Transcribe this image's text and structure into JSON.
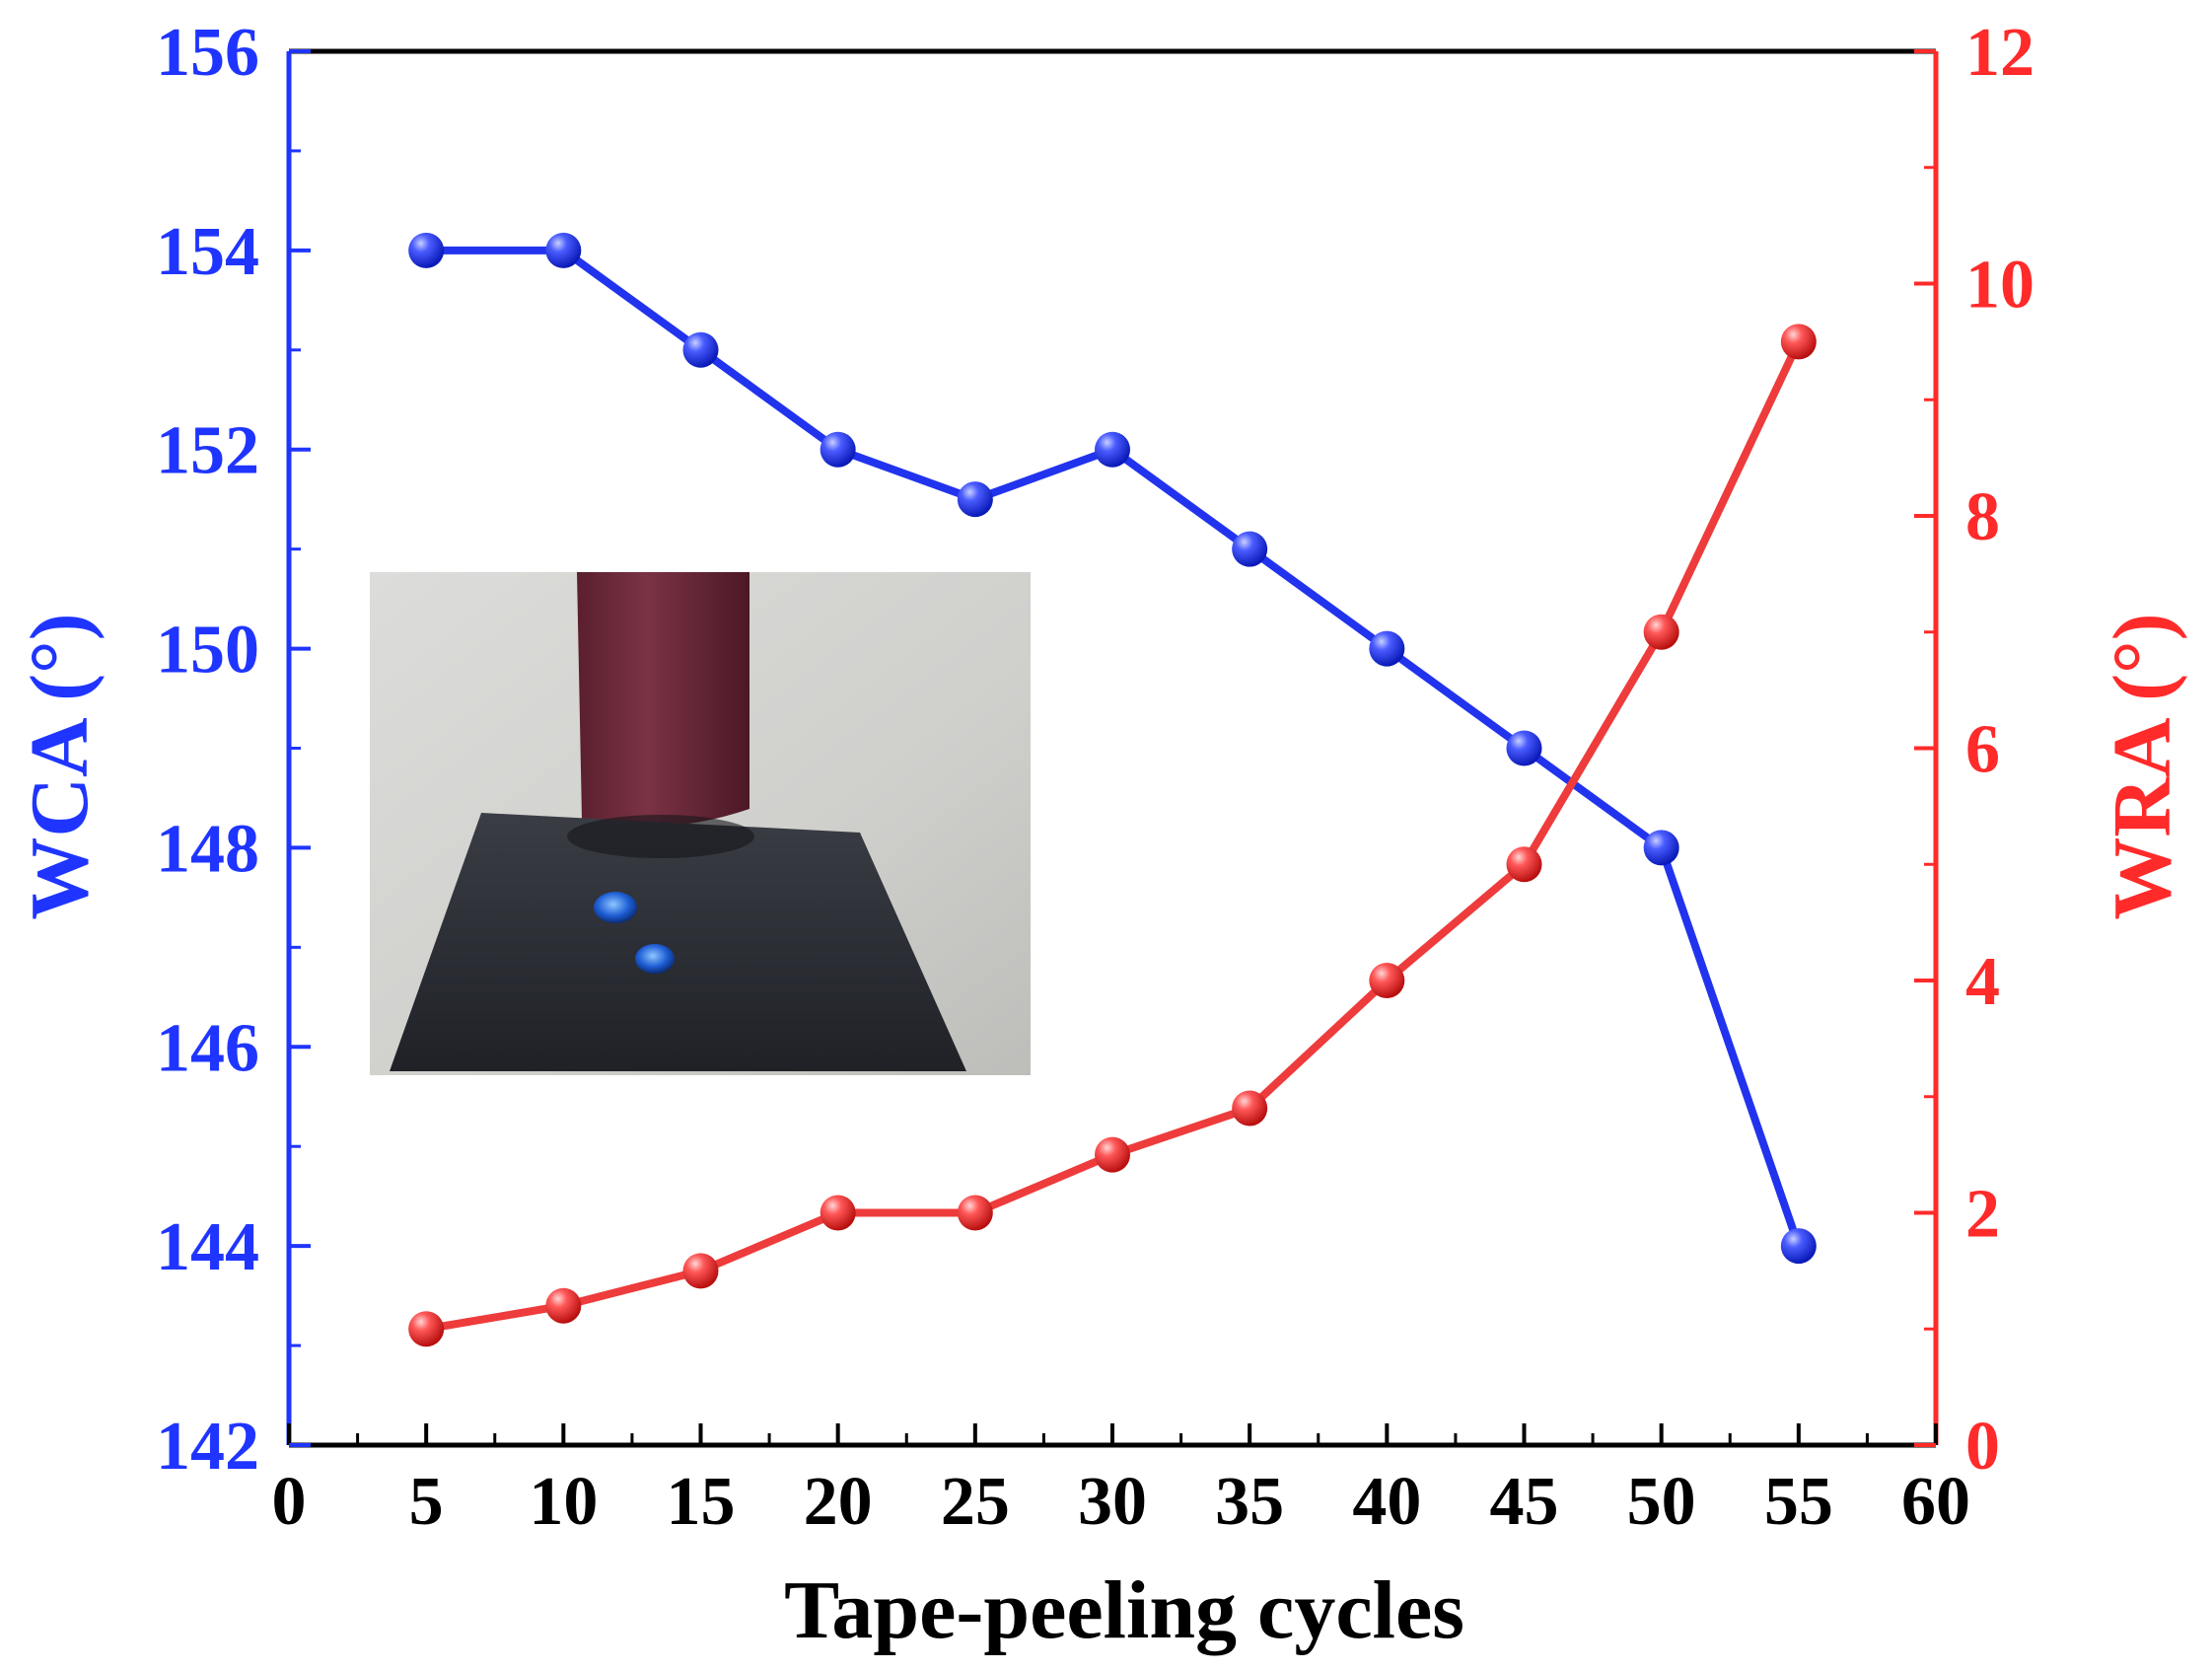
{
  "colors": {
    "left_axis": "#1f35ff",
    "right_axis": "#ff2a2a",
    "frame": "#000000",
    "wca_line": "#2233ee",
    "wra_line": "#ee3b3b"
  },
  "inset_photo": {
    "description_icon": "photo-icon"
  },
  "chart_data": {
    "type": "line",
    "xlabel": "Tape-peeling cycles",
    "ylabel_left": "WCA (°)",
    "ylabel_right": "WRA (°)",
    "xlim": [
      0,
      60
    ],
    "ylim_left": [
      142,
      156
    ],
    "ylim_right": [
      0,
      12
    ],
    "x_ticks": [
      "0",
      "5",
      "10",
      "15",
      "20",
      "25",
      "30",
      "35",
      "40",
      "45",
      "50",
      "55",
      "60"
    ],
    "y_left_ticks": [
      "142",
      "144",
      "146",
      "148",
      "150",
      "152",
      "154",
      "156"
    ],
    "y_right_ticks": [
      "0",
      "2",
      "4",
      "6",
      "8",
      "10",
      "12"
    ],
    "grid": false,
    "series": [
      {
        "axis": "left",
        "color": "#2233ee",
        "x": [
          5,
          10,
          15,
          20,
          25,
          30,
          35,
          40,
          45,
          50,
          55
        ],
        "values": [
          154,
          154,
          153,
          152,
          151.5,
          152,
          151,
          150,
          149,
          148,
          144
        ]
      },
      {
        "axis": "right",
        "color": "#ee3b3b",
        "x": [
          5,
          10,
          15,
          20,
          25,
          30,
          35,
          40,
          45,
          50,
          55
        ],
        "values": [
          1.0,
          1.2,
          1.5,
          2.0,
          2.0,
          2.5,
          2.9,
          4.0,
          5.0,
          7.0,
          9.5
        ]
      }
    ]
  }
}
